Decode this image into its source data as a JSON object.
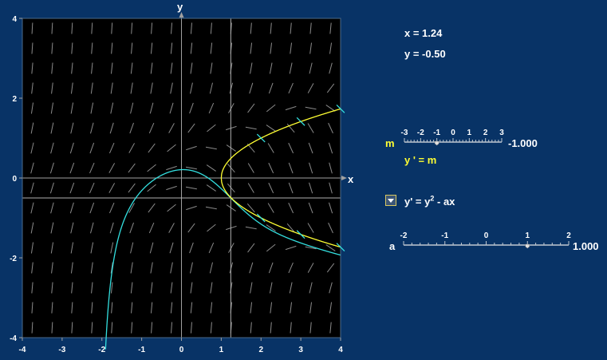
{
  "readout": {
    "x_text": "x = 1.24",
    "y_text": "y = -0.50"
  },
  "axes": {
    "x_label": "x",
    "y_label": "y",
    "x_ticks": [
      "-4",
      "-3",
      "-2",
      "-1",
      "0",
      "1",
      "2",
      "3",
      "4"
    ],
    "y_ticks": [
      "4",
      "2",
      "0",
      "-2",
      "-4"
    ]
  },
  "cursor": {
    "x": 1.24,
    "y": -0.5
  },
  "slider_m": {
    "letter": "m",
    "ticks": [
      "-3",
      "-2",
      "-1",
      "0",
      "1",
      "2",
      "3"
    ],
    "min": -3,
    "max": 3,
    "value": -1.0,
    "value_text": "-1.000",
    "equation": "y ' = m",
    "color": "#ffff33"
  },
  "equation_select": {
    "prefix": "y' = y",
    "exponent": "2",
    "suffix": " - ax"
  },
  "slider_a": {
    "letter": "a",
    "ticks": [
      "-2",
      "-1",
      "0",
      "1",
      "2"
    ],
    "min": -2,
    "max": 2,
    "value": 1.0,
    "value_text": "1.000"
  },
  "colors": {
    "background": "#083366",
    "plot_bg": "#000000",
    "yellow_curve": "#ffff33",
    "cyan_curve": "#33e0e0"
  }
}
